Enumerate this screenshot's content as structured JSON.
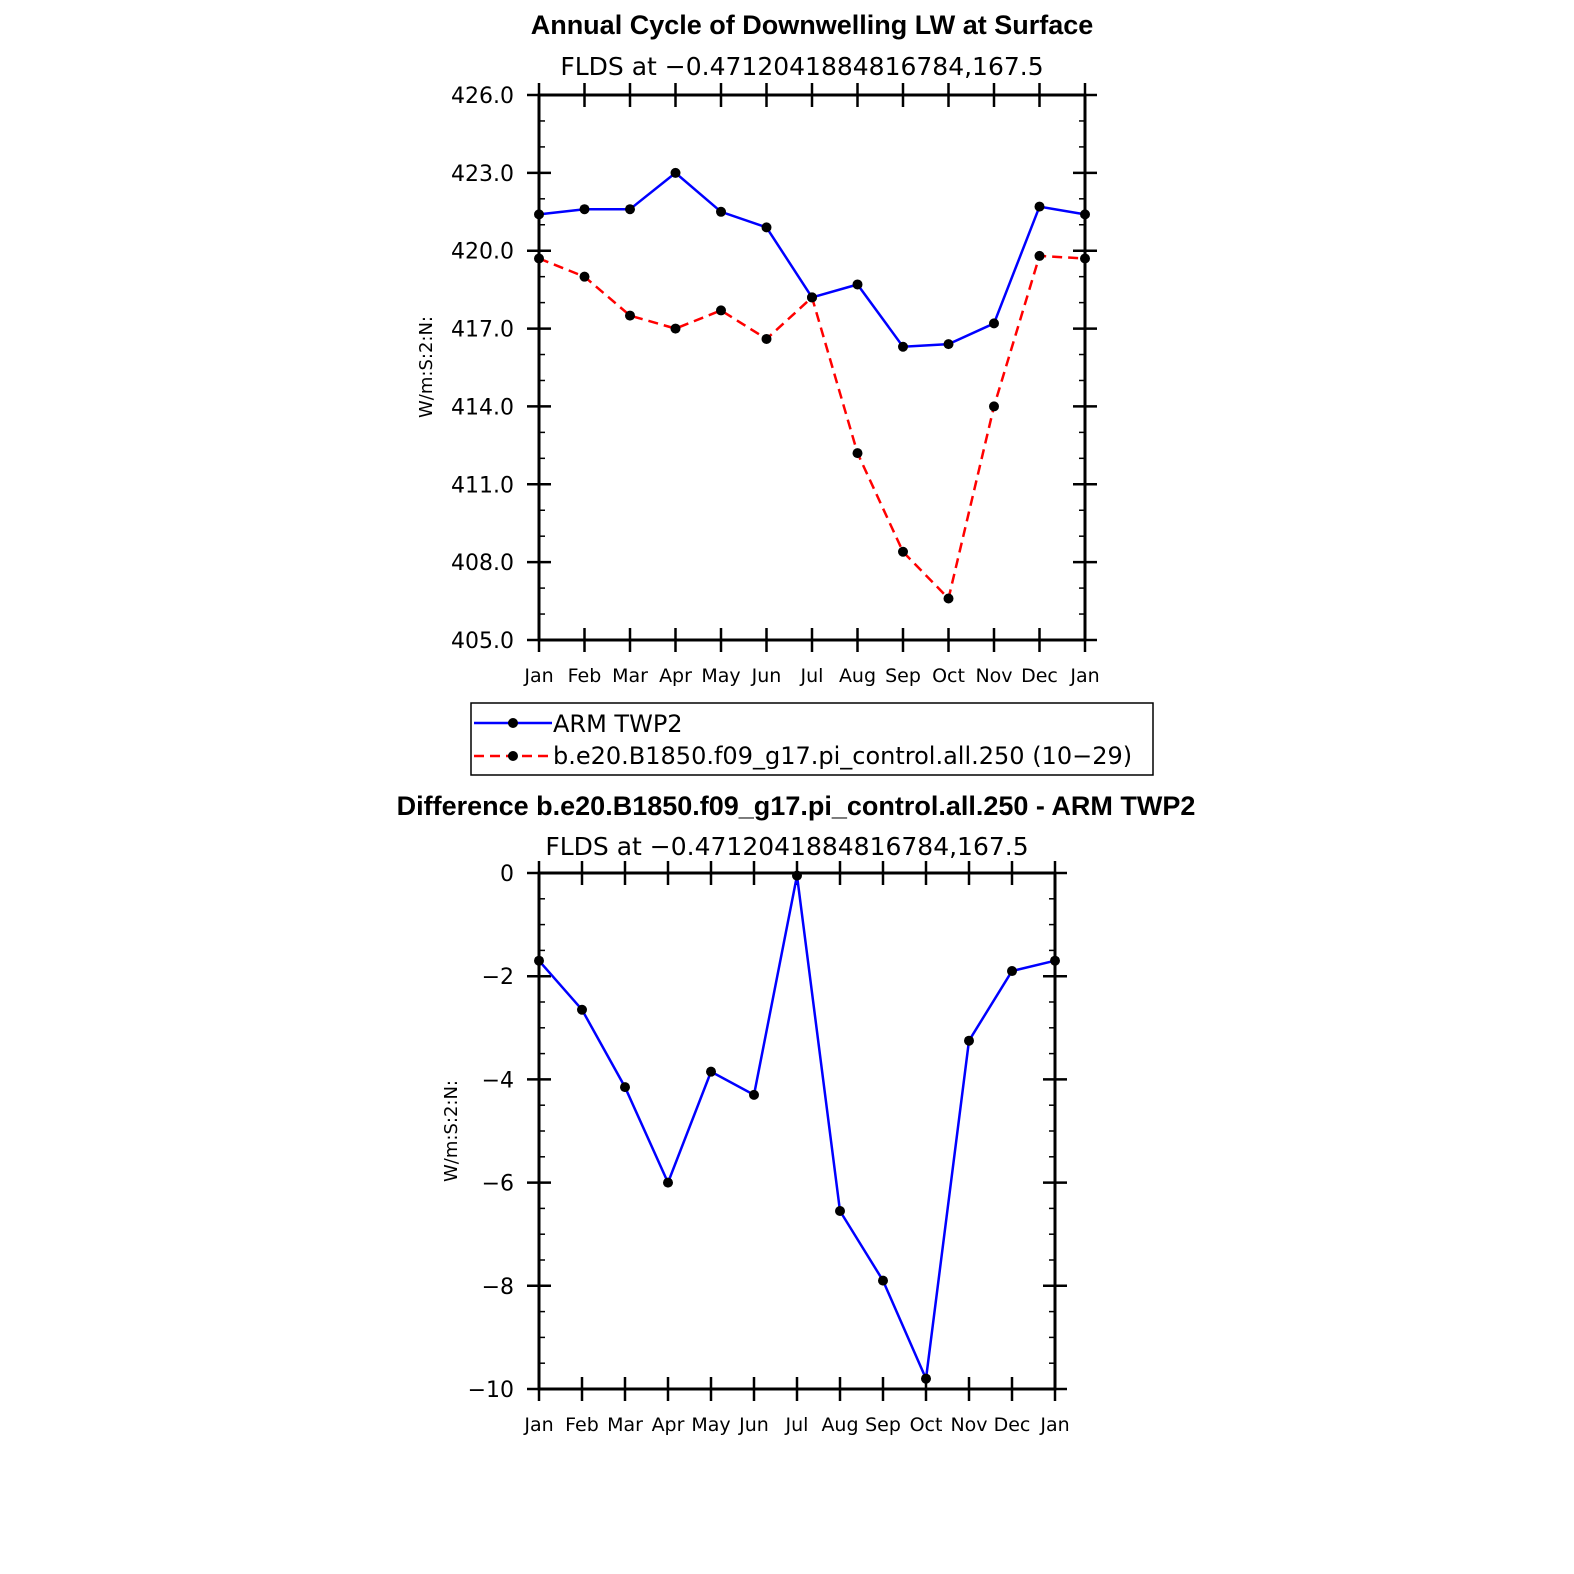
{
  "chart_data": [
    {
      "type": "line",
      "title": "Annual Cycle of Downwelling LW at Surface",
      "subtitle": "FLDS at −0.4712041884816784,167.5",
      "ylabel": "W/m:S:2:N:",
      "xlabel": "",
      "categories": [
        "Jan",
        "Feb",
        "Mar",
        "Apr",
        "May",
        "Jun",
        "Jul",
        "Aug",
        "Sep",
        "Oct",
        "Nov",
        "Dec",
        "Jan"
      ],
      "ylim": [
        405.0,
        426.0
      ],
      "yticks": [
        "405.0",
        "408.0",
        "411.0",
        "414.0",
        "417.0",
        "420.0",
        "423.0",
        "426.0"
      ],
      "grid": false,
      "legend_position": "bottom",
      "series": [
        {
          "name": "ARM TWP2",
          "color": "#0000ff",
          "dash": "solid",
          "values": [
            421.4,
            421.6,
            421.6,
            423.0,
            421.5,
            420.9,
            418.2,
            418.7,
            416.3,
            416.4,
            417.2,
            421.7,
            421.4
          ]
        },
        {
          "name": "b.e20.B1850.f09_g17.pi_control.all.250 (10−29)",
          "color": "#ff0000",
          "dash": "dashed",
          "values": [
            419.7,
            419.0,
            417.5,
            417.0,
            417.7,
            416.6,
            418.2,
            412.2,
            408.4,
            406.6,
            414.0,
            419.8,
            419.7
          ]
        }
      ]
    },
    {
      "type": "line",
      "title": "Difference b.e20.B1850.f09_g17.pi_control.all.250 - ARM TWP2",
      "subtitle": "FLDS at −0.4712041884816784,167.5",
      "ylabel": "W/m:S:2:N:",
      "xlabel": "",
      "categories": [
        "Jan",
        "Feb",
        "Mar",
        "Apr",
        "May",
        "Jun",
        "Jul",
        "Aug",
        "Sep",
        "Oct",
        "Nov",
        "Dec",
        "Jan"
      ],
      "ylim": [
        -10,
        0
      ],
      "yticks": [
        "−10",
        "−8",
        "−6",
        "−4",
        "−2",
        "0"
      ],
      "grid": false,
      "series": [
        {
          "color": "#0000ff",
          "dash": "solid",
          "values": [
            -1.7,
            -2.65,
            -4.15,
            -6.0,
            -3.85,
            -4.3,
            -0.05,
            -6.55,
            -7.9,
            -9.8,
            -3.25,
            -1.9,
            -1.7
          ]
        }
      ]
    }
  ]
}
